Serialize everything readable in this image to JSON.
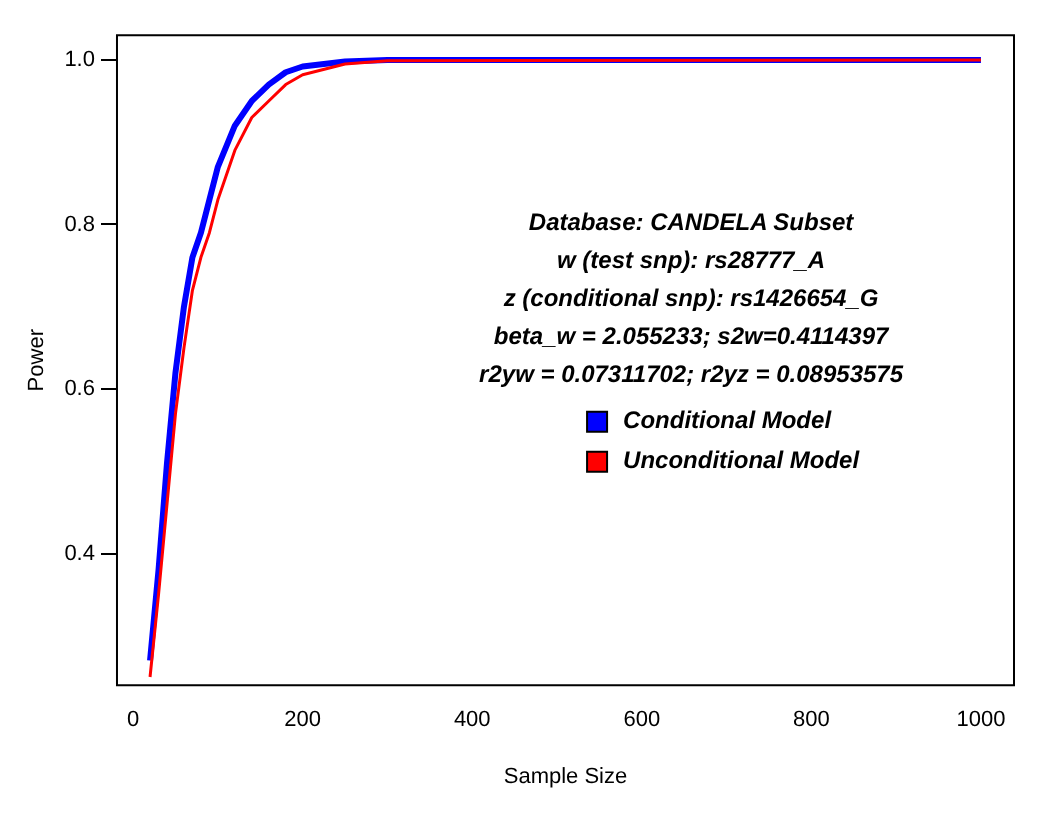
{
  "chart_data": {
    "type": "line",
    "xlabel": "Sample Size",
    "ylabel": "Power",
    "annotations": [
      "Database: CANDELA Subset",
      "w (test snp): rs28777_A",
      "z (conditional snp): rs1426654_G",
      "beta_w = 2.055233; s2w=0.4114397",
      "r2yw = 0.07311702; r2yz = 0.08953575"
    ],
    "series": [
      {
        "name": "Conditional Model",
        "color": "#0000ff",
        "x": [
          20,
          30,
          40,
          50,
          60,
          70,
          80,
          90,
          100,
          120,
          140,
          160,
          180,
          200,
          250,
          300,
          1000
        ],
        "values": [
          0.27,
          0.38,
          0.51,
          0.62,
          0.7,
          0.76,
          0.79,
          0.83,
          0.87,
          0.92,
          0.95,
          0.97,
          0.985,
          0.992,
          0.998,
          1.0,
          1.0
        ]
      },
      {
        "name": "Unconditional Model",
        "color": "#ff0000",
        "x": [
          20,
          30,
          40,
          50,
          60,
          70,
          80,
          90,
          100,
          120,
          140,
          160,
          180,
          200,
          250,
          300,
          1000
        ],
        "values": [
          0.25,
          0.35,
          0.46,
          0.57,
          0.65,
          0.72,
          0.76,
          0.79,
          0.83,
          0.89,
          0.93,
          0.95,
          0.97,
          0.982,
          0.995,
          0.999,
          1.0
        ]
      }
    ],
    "xlim": [
      -19,
      1039
    ],
    "ylim": [
      0.24,
      1.03
    ],
    "xticks": [
      0,
      200,
      400,
      600,
      800,
      1000
    ],
    "yticks": [
      0.4,
      0.6,
      0.8,
      {
        "value": 1,
        "label": "1.0"
      }
    ],
    "grid": false,
    "legend": "right",
    "marker": "none",
    "line_style": "solid"
  }
}
